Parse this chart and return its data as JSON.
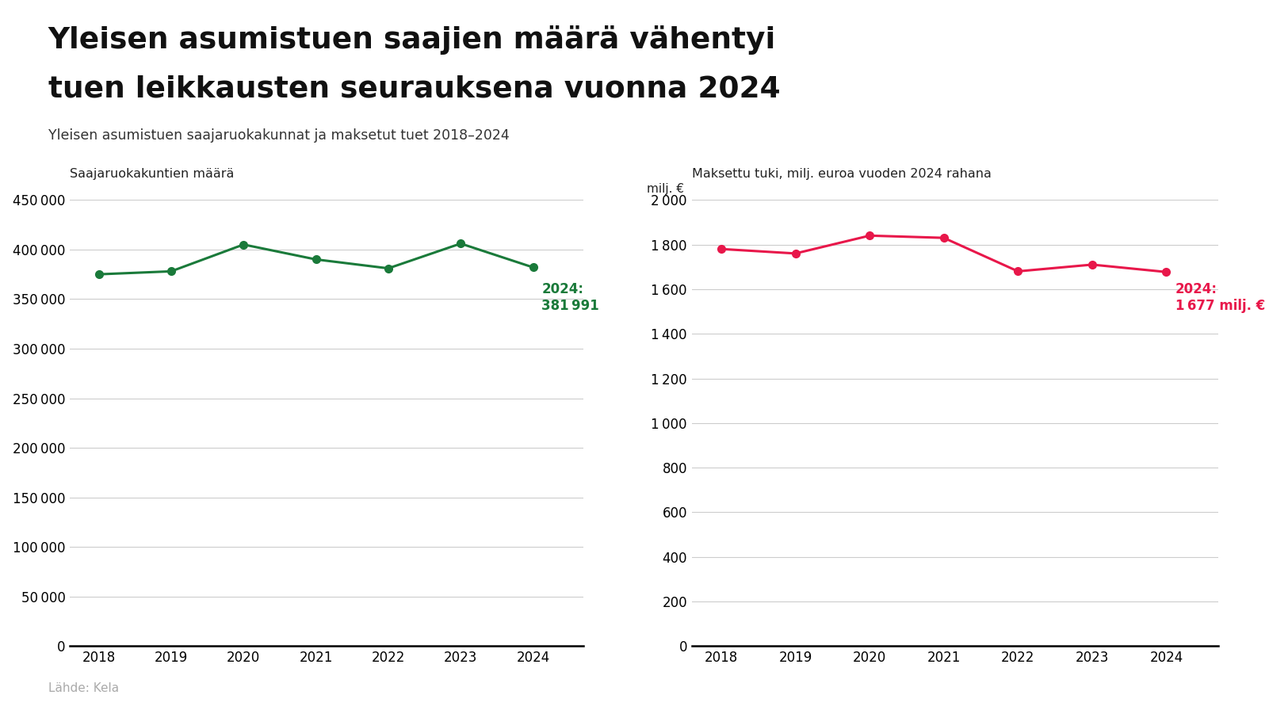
{
  "title_line1": "Yleisen asumistuen saajien määrä vähentyi",
  "title_line2": "tuen leikkausten seurauksena vuonna 2024",
  "subtitle": "Yleisen asumistuen saajaruokakunnat ja maksetut tuet 2018–2024",
  "source": "Lähde: Kela",
  "years": [
    2018,
    2019,
    2020,
    2021,
    2022,
    2023,
    2024
  ],
  "left_values": [
    375000,
    378000,
    405000,
    390000,
    381000,
    406000,
    381991
  ],
  "right_values": [
    1780,
    1760,
    1840,
    1830,
    1680,
    1710,
    1677
  ],
  "left_ylabel": "Saajaruokakuntien määrä",
  "right_ylabel": "Maksettu tuki, milj. euroa vuoden 2024 rahana",
  "right_yunit": "milj. €",
  "left_ylim": [
    0,
    450000
  ],
  "right_ylim": [
    0,
    2000
  ],
  "left_yticks": [
    0,
    50000,
    100000,
    150000,
    200000,
    250000,
    300000,
    350000,
    400000,
    450000
  ],
  "right_yticks": [
    0,
    200,
    400,
    600,
    800,
    1000,
    1200,
    1400,
    1600,
    1800,
    2000
  ],
  "left_color": "#1a7a3a",
  "right_color": "#e8174a",
  "annotation_left_year": "2024:",
  "annotation_left_value": "381 991",
  "annotation_right_year": "2024:",
  "annotation_right_value": "1 677 milj. €",
  "bg_color": "#ffffff",
  "grid_color": "#cccccc",
  "axis_color": "#000000"
}
